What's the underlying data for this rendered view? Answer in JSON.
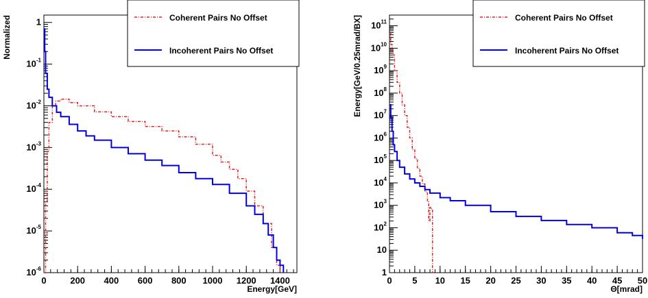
{
  "chart_data": [
    {
      "type": "line",
      "ylabel": "Normalized",
      "xlabel": "Energy[GeV]",
      "xlim": [
        0,
        1500
      ],
      "ylim": [
        1e-06,
        1.5
      ],
      "y_scale": "log",
      "x_ticks": [
        0,
        200,
        400,
        600,
        800,
        1000,
        1200,
        1400
      ],
      "x_tick_labels": [
        "0",
        "200",
        "400",
        "600",
        "800",
        "1000",
        "1200",
        "1400"
      ],
      "y_ticks": [
        {
          "value": 1e-06,
          "base": "10",
          "exp": "-6"
        },
        {
          "value": 1e-05,
          "base": "10",
          "exp": "-5"
        },
        {
          "value": 0.0001,
          "base": "10",
          "exp": "-4"
        },
        {
          "value": 0.001,
          "base": "10",
          "exp": "-3"
        },
        {
          "value": 0.01,
          "base": "10",
          "exp": "-2"
        },
        {
          "value": 0.1,
          "base": "10",
          "exp": "-1"
        },
        {
          "value": 1,
          "base": "1",
          "exp": ""
        }
      ],
      "legend_position": "top-right",
      "series": [
        {
          "name": "Coherent Pairs No Offset",
          "color": "#e02020",
          "style": "dash-dot",
          "x": [
            0,
            10,
            20,
            30,
            50,
            70,
            100,
            150,
            200,
            300,
            400,
            500,
            600,
            700,
            800,
            900,
            1000,
            1050,
            1100,
            1150,
            1200,
            1250,
            1300,
            1350,
            1380,
            1400
          ],
          "y": [
            1e-06,
            5e-05,
            0.0008,
            0.004,
            0.01,
            0.013,
            0.0145,
            0.012,
            0.01,
            0.0072,
            0.0055,
            0.0042,
            0.0032,
            0.0025,
            0.0018,
            0.0012,
            0.00065,
            0.00045,
            0.0003,
            0.00018,
            9e-05,
            4e-05,
            1.5e-05,
            4e-06,
            1.5e-06,
            1e-06
          ]
        },
        {
          "name": "Incoherent Pairs No Offset",
          "color": "#0000e0",
          "style": "solid",
          "x": [
            2,
            5,
            10,
            20,
            30,
            50,
            75,
            100,
            150,
            200,
            250,
            300,
            400,
            500,
            600,
            700,
            800,
            900,
            1000,
            1100,
            1200,
            1250,
            1300,
            1330,
            1360,
            1380,
            1400,
            1420
          ],
          "y": [
            0.7,
            0.2,
            0.06,
            0.025,
            0.016,
            0.01,
            0.007,
            0.0055,
            0.0036,
            0.0025,
            0.0019,
            0.0015,
            0.001,
            0.00071,
            0.0005,
            0.00037,
            0.00025,
            0.00018,
            0.00013,
            8e-05,
            4e-05,
            2.5e-05,
            1.5e-05,
            8e-06,
            4e-06,
            2e-06,
            1.5e-06,
            1e-06
          ]
        }
      ]
    },
    {
      "type": "line",
      "ylabel": "Energy[GeV/0.25mrad/BX]",
      "xlabel": "Θ[mrad]",
      "xlim": [
        0,
        50
      ],
      "ylim": [
        1,
        300000000000.0
      ],
      "y_scale": "log",
      "x_ticks": [
        0,
        5,
        10,
        15,
        20,
        25,
        30,
        35,
        40,
        45,
        50
      ],
      "x_tick_labels": [
        "0",
        "5",
        "10",
        "15",
        "20",
        "25",
        "30",
        "35",
        "40",
        "45",
        "50"
      ],
      "y_ticks": [
        {
          "value": 1,
          "base": "1",
          "exp": ""
        },
        {
          "value": 10,
          "base": "10",
          "exp": ""
        },
        {
          "value": 100,
          "base": "10",
          "exp": "2"
        },
        {
          "value": 1000,
          "base": "10",
          "exp": "3"
        },
        {
          "value": 10000,
          "base": "10",
          "exp": "4"
        },
        {
          "value": 100000,
          "base": "10",
          "exp": "5"
        },
        {
          "value": 1000000,
          "base": "10",
          "exp": "6"
        },
        {
          "value": 10000000,
          "base": "10",
          "exp": "7"
        },
        {
          "value": 100000000,
          "base": "10",
          "exp": "8"
        },
        {
          "value": 1000000000,
          "base": "10",
          "exp": "9"
        },
        {
          "value": 10000000000,
          "base": "10",
          "exp": "10"
        },
        {
          "value": 100000000000,
          "base": "10",
          "exp": "11"
        }
      ],
      "legend_position": "top-right",
      "series": [
        {
          "name": "Coherent Pairs No Offset",
          "color": "#e02020",
          "style": "dash-dot",
          "x": [
            0.1,
            0.25,
            0.5,
            1.0,
            1.5,
            2.0,
            2.5,
            3.0,
            3.5,
            4.0,
            4.5,
            5.0,
            5.5,
            6.0,
            6.5,
            7.0,
            7.5,
            7.75,
            8.0,
            8.25,
            8.5,
            8.75
          ],
          "y": [
            50000000000.0,
            15000000000.0,
            5000000000.0,
            1000000000.0,
            300000000.0,
            100000000.0,
            30000000.0,
            10000000.0,
            3000000.0,
            1000000.0,
            300000.0,
            120000.0,
            45000.0,
            20000.0,
            9000,
            4000,
            1500,
            200,
            800,
            700,
            1,
            1
          ]
        },
        {
          "name": "Incoherent Pairs No Offset",
          "color": "#0000e0",
          "style": "solid",
          "x": [
            0.1,
            0.25,
            0.5,
            0.75,
            1.0,
            1.5,
            2.0,
            3.0,
            4.0,
            5.0,
            6.0,
            7.0,
            8.0,
            10,
            12,
            15,
            20,
            25,
            30,
            35,
            40,
            45,
            48,
            50
          ],
          "y": [
            30000000.0,
            8000000.0,
            2000000.0,
            500000.0,
            250000.0,
            100000.0,
            50000.0,
            25000.0,
            15000.0,
            10000.0,
            7000,
            5000,
            3500,
            2200,
            1600,
            1000,
            520,
            320,
            210,
            140,
            100,
            60,
            45,
            32
          ]
        }
      ]
    }
  ]
}
